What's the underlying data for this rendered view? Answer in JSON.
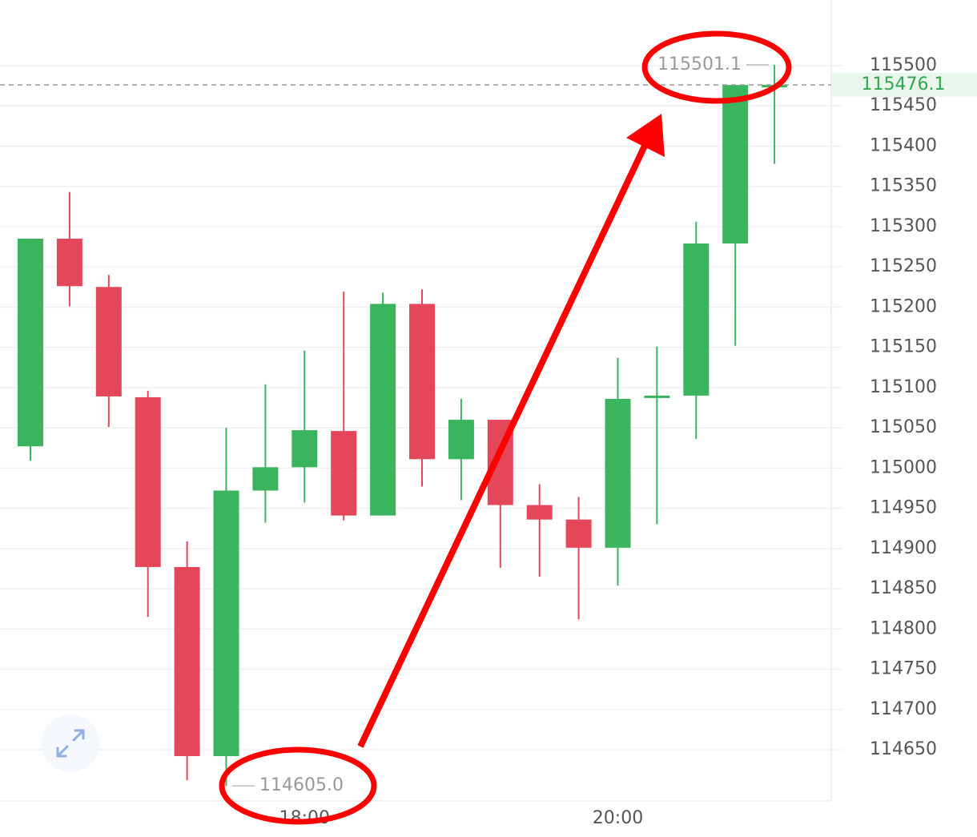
{
  "chart_data": {
    "type": "candlestick",
    "categories": [
      null,
      null,
      null,
      null,
      null,
      null,
      null,
      "18:00",
      null,
      null,
      null,
      null,
      null,
      null,
      null,
      "20:00",
      null,
      null,
      null,
      null
    ],
    "open": [
      115027,
      115285,
      115225,
      115088,
      114877,
      114642,
      114972,
      115001,
      115046,
      114941,
      115204,
      115011,
      115060,
      114954,
      114936,
      114901,
      115087,
      115090,
      115279,
      115476
    ],
    "high": [
      115285,
      115343,
      115240,
      115096,
      114909,
      115050,
      115104,
      115146,
      115219,
      115218,
      115222,
      115086,
      115060,
      114980,
      114964,
      115137,
      115151,
      115306,
      115476,
      115501.1
    ],
    "low": [
      115009,
      115201,
      115051,
      114815,
      114612,
      114605.0,
      114932,
      114957,
      114935,
      114941,
      114977,
      114960,
      114876,
      114865,
      114812,
      114854,
      114930,
      115036,
      115152,
      115378
    ],
    "close": [
      115285,
      115226,
      115089,
      114877,
      114642,
      114972,
      115001,
      115047,
      114941,
      115204,
      115011,
      115060,
      114954,
      114936,
      114901,
      115086,
      115090,
      115279,
      115476,
      115476.1
    ],
    "up_color": "#3bb55d",
    "down_color": "#e5475a",
    "ylim": [
      114586.3,
      115581.6
    ],
    "yticks": [
      115500,
      115450,
      115400,
      115350,
      115300,
      115250,
      115200,
      115150,
      115100,
      115050,
      115000,
      114950,
      114900,
      114850,
      114800,
      114750,
      114700,
      114650
    ],
    "grid": true,
    "annotations": [
      {
        "value": 115501.1,
        "label": "115501.1"
      },
      {
        "value": 114605.0,
        "label": "114605.0"
      }
    ],
    "last_price": {
      "value": 115476.1,
      "label": "115476.1"
    }
  }
}
